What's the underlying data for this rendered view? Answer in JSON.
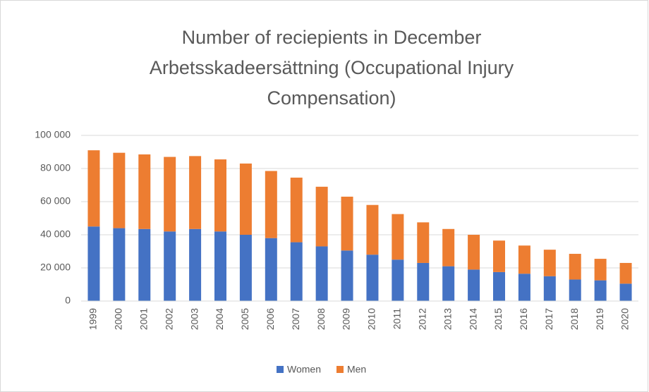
{
  "chart_data": {
    "type": "stacked_bar",
    "title": [
      "Number of reciepients in December",
      "Arbetsskadeersättning (Occupational Injury",
      "Compensation)"
    ],
    "categories": [
      "1999",
      "2000",
      "2001",
      "2002",
      "2003",
      "2004",
      "2005",
      "2006",
      "2007",
      "2008",
      "2009",
      "2010",
      "2011",
      "2012",
      "2013",
      "2014",
      "2015",
      "2016",
      "2017",
      "2018",
      "2019",
      "2020"
    ],
    "series": [
      {
        "name": "Women",
        "color": "#4472c4",
        "values": [
          45000,
          44000,
          43500,
          42000,
          43500,
          42000,
          40000,
          38000,
          35500,
          33000,
          30500,
          28000,
          25000,
          23000,
          21000,
          19000,
          17500,
          16500,
          15000,
          13000,
          12500,
          10500
        ]
      },
      {
        "name": "Men",
        "color": "#ed7d31",
        "values": [
          46000,
          45500,
          45000,
          45000,
          44000,
          43500,
          43000,
          40500,
          39000,
          36000,
          32500,
          30000,
          27500,
          24500,
          22500,
          21000,
          19000,
          17000,
          16000,
          15500,
          13000,
          12500
        ]
      }
    ],
    "ylim": [
      0,
      100000
    ],
    "yticks": [
      0,
      {
        "value": 20000,
        "label": "20 000"
      },
      {
        "value": 40000,
        "label": "40 000"
      },
      {
        "value": 60000,
        "label": "60 000"
      },
      {
        "value": 80000,
        "label": "80 000"
      },
      {
        "value": 100000,
        "label": "100 000"
      }
    ],
    "grid": true,
    "legend": "bottom"
  }
}
